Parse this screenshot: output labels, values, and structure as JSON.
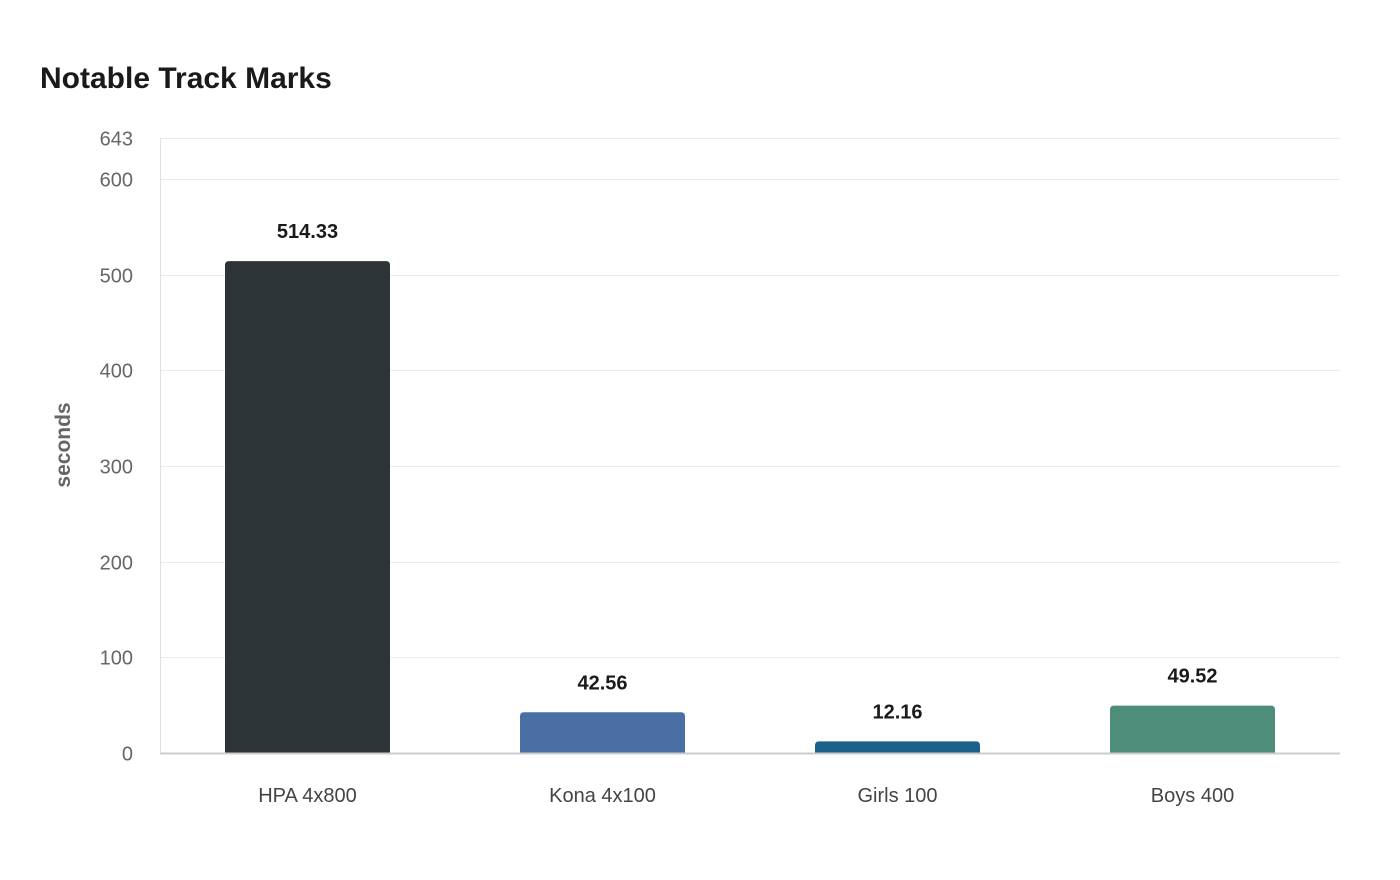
{
  "chart_data": {
    "type": "bar",
    "title": "Notable Track Marks",
    "xlabel": "",
    "ylabel": "seconds",
    "ylim": [
      0,
      643
    ],
    "yticks": [
      0,
      100,
      200,
      300,
      400,
      500,
      600,
      643
    ],
    "grid": true,
    "categories": [
      "HPA 4x800",
      "Kona 4x100",
      "Girls 100",
      "Boys 400"
    ],
    "values": [
      514.33,
      42.56,
      12.16,
      49.52
    ],
    "data_labels": [
      "514.33",
      "42.56",
      "12.16",
      "49.52"
    ],
    "colors": [
      "#2d3436",
      "#4a6fa5",
      "#1b6189",
      "#4f8d7b"
    ]
  }
}
